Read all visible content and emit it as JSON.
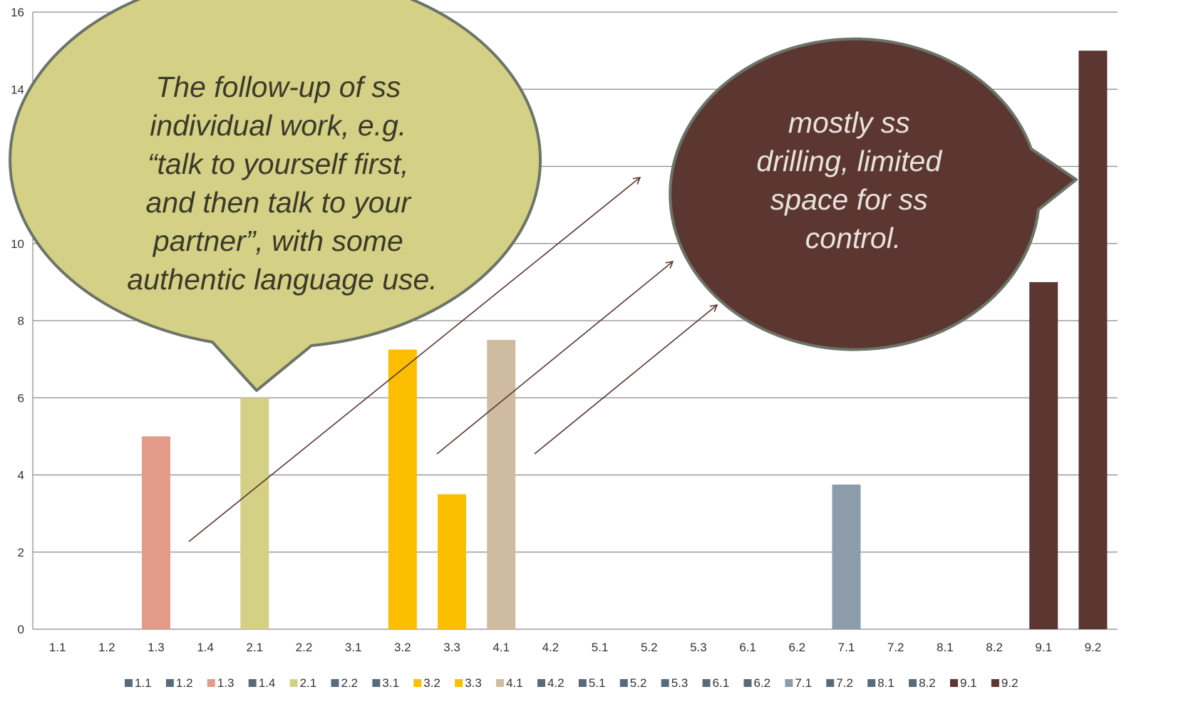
{
  "chart_data": {
    "type": "bar",
    "categories": [
      "1.1",
      "1.2",
      "1.3",
      "1.4",
      "2.1",
      "2.2",
      "3.1",
      "3.2",
      "3.3",
      "4.1",
      "4.2",
      "5.1",
      "5.2",
      "5.3",
      "6.1",
      "6.2",
      "7.1",
      "7.2",
      "8.1",
      "8.2",
      "9.1",
      "9.2"
    ],
    "values": [
      0,
      0,
      5,
      0,
      6,
      0,
      0,
      7.25,
      3.5,
      7.5,
      0,
      0,
      0,
      0,
      0,
      0,
      3.75,
      0,
      0,
      0,
      9,
      15
    ],
    "colors": [
      "#596a7a",
      "#596a7a",
      "#e39a89",
      "#596a7a",
      "#d4d085",
      "#596a7a",
      "#596a7a",
      "#fbbe01",
      "#fbbe01",
      "#cfbca0",
      "#596a7a",
      "#596a7a",
      "#596a7a",
      "#596a7a",
      "#596a7a",
      "#596a7a",
      "#8c9cab",
      "#596a7a",
      "#596a7a",
      "#596a7a",
      "#5c3631",
      "#5c3631"
    ],
    "ylim": [
      0,
      16
    ],
    "yticks": [
      "0",
      "2",
      "4",
      "6",
      "8",
      "10",
      "12",
      "14",
      "16"
    ],
    "grid": true,
    "legend_position": "bottom",
    "title": "",
    "xlabel": "",
    "ylabel": ""
  },
  "callouts": [
    {
      "lines": [
        "The follow-up of ss",
        "individual work, e.g.",
        "“talk to yourself first,",
        "and then talk to your",
        "partner”, with some",
        "authentic language use."
      ],
      "fill": "#d4d085",
      "text_color": "#3a3a2a"
    },
    {
      "lines": [
        "mostly  ss",
        "drilling, limited",
        "space for ss",
        "control."
      ],
      "fill": "#5c3631",
      "text_color": "#e8e3dc"
    }
  ],
  "arrow_color": "#5c3631"
}
